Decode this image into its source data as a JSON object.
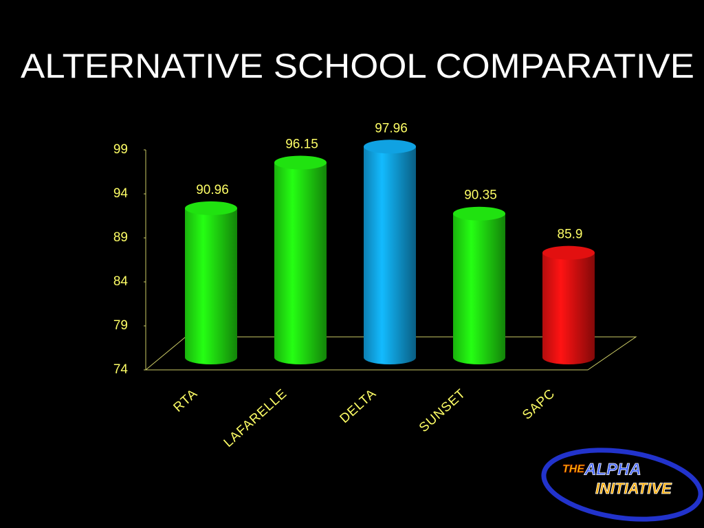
{
  "chart_data": {
    "type": "bar",
    "title": "ALTERNATIVE SCHOOL COMPARATIVE",
    "categories": [
      "RTA",
      "LAFARELLE",
      "DELTA",
      "SUNSET",
      "SAPC"
    ],
    "values": [
      90.96,
      96.15,
      97.96,
      90.35,
      85.9
    ],
    "colors": [
      "#22ee11",
      "#22ee11",
      "#11aaee",
      "#22ee11",
      "#ee1111"
    ],
    "ylim": [
      74,
      99
    ],
    "yticks": [
      74,
      79,
      84,
      89,
      94,
      99
    ]
  },
  "logo": {
    "line1": "THE",
    "line2": "ALPHA",
    "line3": "INITIATIVE"
  }
}
